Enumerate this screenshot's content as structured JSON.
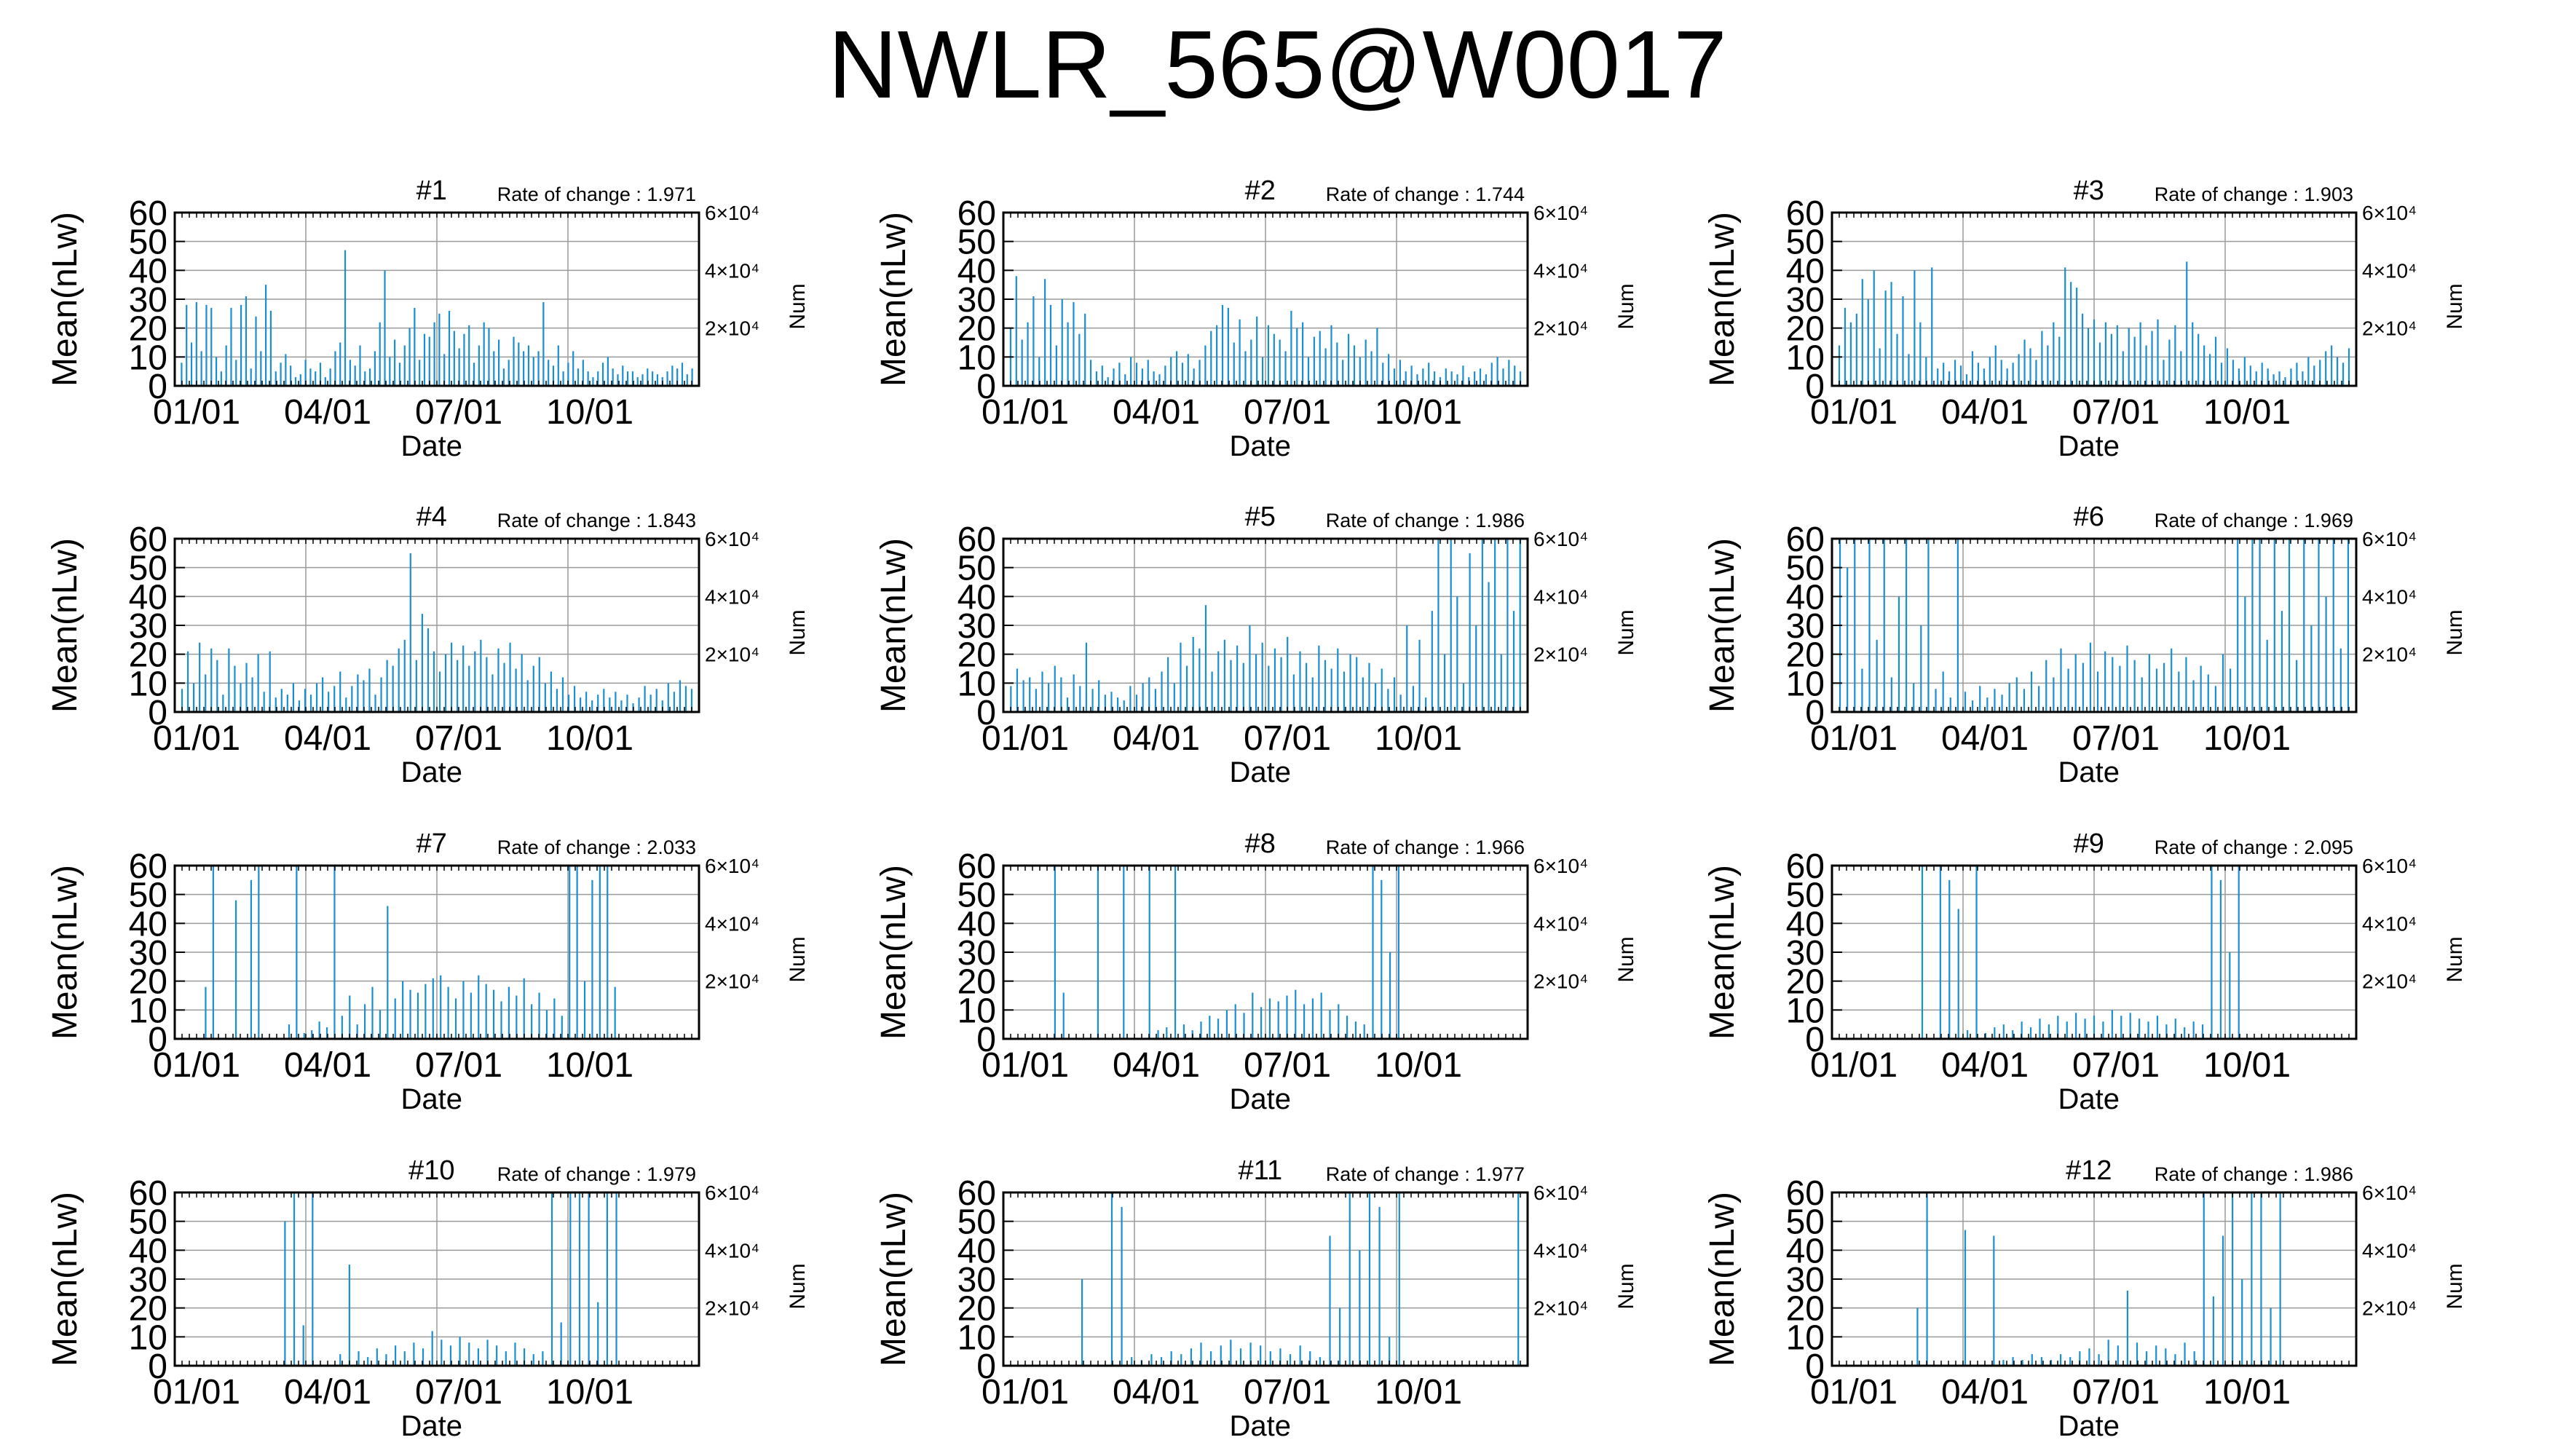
{
  "page": {
    "title": "NWLR_565@W0017"
  },
  "colors": {
    "data": "#1a8fd0",
    "grid": "#9a9a9a",
    "axis": "#000000"
  },
  "chart_data": [
    {
      "type": "bar",
      "title": "#1",
      "rate_label": "Rate of change : 1.971",
      "xlabel": "Date",
      "ylabel": "Mean(nLw)",
      "y2label": "Num",
      "ylim": [
        0,
        60
      ],
      "yticks": [
        0,
        10,
        20,
        30,
        40,
        50,
        60
      ],
      "y2ticks": [
        "2×10⁴",
        "4×10⁴",
        "6×10⁴"
      ],
      "xticks": [
        "01/01",
        "04/01",
        "07/01",
        "10/01"
      ],
      "grid": true,
      "values": [
        8,
        28,
        15,
        29,
        12,
        28,
        27,
        10,
        5,
        14,
        27,
        9,
        28,
        31,
        6,
        24,
        12,
        35,
        26,
        5,
        8,
        11,
        7,
        3,
        4,
        9,
        6,
        5,
        8,
        3,
        6,
        12,
        15,
        47,
        9,
        7,
        14,
        5,
        6,
        12,
        22,
        40,
        10,
        16,
        8,
        14,
        20,
        27,
        9,
        18,
        17,
        22,
        25,
        11,
        26,
        19,
        13,
        18,
        21,
        8,
        14,
        22,
        20,
        12,
        16,
        6,
        9,
        17,
        15,
        12,
        14,
        10,
        12,
        29,
        9,
        7,
        14,
        5,
        8,
        12,
        6,
        9,
        5,
        3,
        5,
        8,
        10,
        6,
        4,
        7,
        5,
        5,
        3,
        4,
        6,
        5,
        4,
        3,
        5,
        7,
        6,
        8,
        4,
        6
      ]
    },
    {
      "type": "bar",
      "title": "#2",
      "rate_label": "Rate of change : 1.744",
      "xlabel": "Date",
      "ylabel": "Mean(nLw)",
      "y2label": "Num",
      "ylim": [
        0,
        60
      ],
      "yticks": [
        0,
        10,
        20,
        30,
        40,
        50,
        60
      ],
      "y2ticks": [
        "2×10⁴",
        "4×10⁴",
        "6×10⁴"
      ],
      "xticks": [
        "01/01",
        "04/01",
        "07/01",
        "10/01"
      ],
      "grid": true,
      "values": [
        20,
        38,
        16,
        22,
        31,
        10,
        37,
        28,
        14,
        30,
        22,
        29,
        18,
        25,
        9,
        5,
        7,
        3,
        6,
        8,
        4,
        10,
        8,
        6,
        9,
        5,
        4,
        7,
        10,
        12,
        8,
        11,
        6,
        9,
        14,
        19,
        21,
        28,
        27,
        15,
        23,
        12,
        16,
        24,
        10,
        21,
        18,
        16,
        12,
        26,
        20,
        22,
        10,
        17,
        19,
        13,
        21,
        15,
        9,
        18,
        14,
        10,
        16,
        12,
        20,
        8,
        11,
        6,
        9,
        5,
        7,
        4,
        6,
        8,
        5,
        3,
        6,
        5,
        4,
        7,
        3,
        5,
        6,
        4,
        8,
        10,
        6,
        9,
        7,
        5
      ]
    },
    {
      "type": "bar",
      "title": "#3",
      "rate_label": "Rate of change : 1.903",
      "xlabel": "Date",
      "ylabel": "Mean(nLw)",
      "y2label": "Num",
      "ylim": [
        0,
        60
      ],
      "yticks": [
        0,
        10,
        20,
        30,
        40,
        50,
        60
      ],
      "y2ticks": [
        "2×10⁴",
        "4×10⁴",
        "6×10⁴"
      ],
      "xticks": [
        "01/01",
        "04/01",
        "07/01",
        "10/01"
      ],
      "grid": true,
      "values": [
        14,
        27,
        22,
        25,
        37,
        30,
        40,
        13,
        33,
        36,
        18,
        31,
        11,
        40,
        22,
        10,
        41,
        6,
        8,
        5,
        9,
        7,
        4,
        12,
        8,
        6,
        10,
        14,
        9,
        6,
        8,
        11,
        16,
        13,
        9,
        19,
        14,
        22,
        17,
        41,
        36,
        34,
        25,
        20,
        23,
        15,
        22,
        18,
        21,
        12,
        20,
        17,
        22,
        14,
        19,
        23,
        9,
        16,
        21,
        12,
        43,
        22,
        18,
        14,
        11,
        17,
        8,
        13,
        9,
        6,
        10,
        7,
        5,
        8,
        6,
        4,
        5,
        3,
        6,
        8,
        5,
        10,
        7,
        9,
        12,
        14,
        10,
        8,
        13
      ]
    },
    {
      "type": "bar",
      "title": "#4",
      "rate_label": "Rate of change : 1.843",
      "xlabel": "Date",
      "ylabel": "Mean(nLw)",
      "y2label": "Num",
      "ylim": [
        0,
        60
      ],
      "yticks": [
        0,
        10,
        20,
        30,
        40,
        50,
        60
      ],
      "y2ticks": [
        "2×10⁴",
        "4×10⁴",
        "6×10⁴"
      ],
      "xticks": [
        "01/01",
        "04/01",
        "07/01",
        "10/01"
      ],
      "grid": true,
      "values": [
        8,
        21,
        10,
        24,
        13,
        22,
        18,
        6,
        22,
        16,
        10,
        17,
        12,
        20,
        7,
        21,
        5,
        8,
        6,
        10,
        4,
        8,
        6,
        10,
        12,
        7,
        9,
        14,
        5,
        9,
        13,
        11,
        15,
        6,
        12,
        18,
        16,
        22,
        25,
        55,
        18,
        34,
        29,
        21,
        14,
        20,
        24,
        18,
        23,
        16,
        21,
        25,
        19,
        13,
        22,
        17,
        24,
        15,
        20,
        11,
        16,
        19,
        10,
        14,
        8,
        12,
        6,
        9,
        5,
        7,
        4,
        6,
        8,
        5,
        7,
        4,
        6,
        3,
        5,
        9,
        6,
        8,
        4,
        10,
        7,
        11,
        9,
        8
      ]
    },
    {
      "type": "bar",
      "title": "#5",
      "rate_label": "Rate of change : 1.986",
      "xlabel": "Date",
      "ylabel": "Mean(nLw)",
      "y2label": "Num",
      "ylim": [
        0,
        60
      ],
      "yticks": [
        0,
        10,
        20,
        30,
        40,
        50,
        60
      ],
      "y2ticks": [
        "2×10⁴",
        "4×10⁴",
        "6×10⁴"
      ],
      "xticks": [
        "01/01",
        "04/01",
        "07/01",
        "10/01"
      ],
      "grid": true,
      "values": [
        9,
        15,
        11,
        12,
        8,
        14,
        10,
        16,
        12,
        5,
        13,
        9,
        24,
        8,
        11,
        6,
        7,
        5,
        4,
        9,
        6,
        10,
        12,
        8,
        14,
        19,
        10,
        24,
        16,
        26,
        22,
        37,
        14,
        21,
        25,
        18,
        23,
        17,
        30,
        20,
        24,
        16,
        22,
        19,
        26,
        13,
        21,
        17,
        12,
        23,
        18,
        15,
        22,
        14,
        20,
        19,
        12,
        17,
        10,
        15,
        8,
        12,
        6,
        30,
        9,
        25,
        5,
        35,
        60,
        20,
        60,
        40,
        10,
        55,
        30,
        60,
        45,
        60,
        20,
        60,
        35,
        60
      ]
    },
    {
      "type": "bar",
      "title": "#6",
      "rate_label": "Rate of change : 1.969",
      "xlabel": "Date",
      "ylabel": "Mean(nLw)",
      "y2label": "Num",
      "ylim": [
        0,
        60
      ],
      "yticks": [
        0,
        10,
        20,
        30,
        40,
        50,
        60
      ],
      "y2ticks": [
        "2×10⁴",
        "4×10⁴",
        "6×10⁴"
      ],
      "xticks": [
        "01/01",
        "04/01",
        "07/01",
        "10/01"
      ],
      "grid": true,
      "values": [
        60,
        50,
        60,
        15,
        60,
        25,
        60,
        12,
        40,
        60,
        10,
        30,
        60,
        8,
        14,
        5,
        60,
        7,
        4,
        9,
        5,
        8,
        6,
        10,
        12,
        8,
        14,
        9,
        18,
        12,
        22,
        15,
        20,
        17,
        24,
        14,
        21,
        19,
        16,
        23,
        18,
        12,
        20,
        15,
        17,
        22,
        14,
        19,
        11,
        16,
        13,
        9,
        20,
        15,
        60,
        40,
        60,
        60,
        25,
        60,
        35,
        60,
        18,
        60,
        30,
        60,
        40,
        60,
        22,
        60
      ]
    },
    {
      "type": "bar",
      "title": "#7",
      "rate_label": "Rate of change : 2.033",
      "xlabel": "Date",
      "ylabel": "Mean(nLw)",
      "y2label": "Num",
      "ylim": [
        0,
        60
      ],
      "yticks": [
        0,
        10,
        20,
        30,
        40,
        50,
        60
      ],
      "y2ticks": [
        "2×10⁴",
        "4×10⁴",
        "6×10⁴"
      ],
      "xticks": [
        "01/01",
        "04/01",
        "07/01",
        "10/01"
      ],
      "grid": true,
      "values": [
        0,
        0,
        0,
        18,
        60,
        0,
        0,
        48,
        0,
        55,
        60,
        0,
        0,
        0,
        5,
        60,
        2,
        3,
        6,
        4,
        60,
        8,
        15,
        5,
        12,
        18,
        10,
        46,
        14,
        20,
        17,
        16,
        19,
        21,
        22,
        18,
        14,
        20,
        16,
        22,
        19,
        17,
        13,
        18,
        15,
        21,
        12,
        16,
        10,
        14,
        8,
        60,
        60,
        20,
        55,
        60,
        60,
        18,
        0,
        0,
        0,
        0,
        0,
        0,
        0,
        0,
        0,
        0
      ]
    },
    {
      "type": "bar",
      "title": "#8",
      "rate_label": "Rate of change : 1.966",
      "xlabel": "Date",
      "ylabel": "Mean(nLw)",
      "y2label": "Num",
      "ylim": [
        0,
        60
      ],
      "yticks": [
        0,
        10,
        20,
        30,
        40,
        50,
        60
      ],
      "y2ticks": [
        "2×10⁴",
        "4×10⁴",
        "6×10⁴"
      ],
      "xticks": [
        "01/01",
        "04/01",
        "07/01",
        "10/01"
      ],
      "grid": true,
      "values": [
        0,
        0,
        0,
        0,
        0,
        60,
        16,
        0,
        0,
        0,
        60,
        0,
        0,
        60,
        0,
        0,
        60,
        3,
        4,
        60,
        5,
        3,
        6,
        8,
        7,
        10,
        12,
        9,
        16,
        11,
        14,
        13,
        15,
        17,
        12,
        14,
        16,
        10,
        12,
        8,
        6,
        5,
        60,
        55,
        30,
        60,
        0,
        0,
        0,
        0,
        0,
        0,
        0,
        0,
        0,
        0,
        0,
        0,
        0,
        0
      ]
    },
    {
      "type": "bar",
      "title": "#9",
      "rate_label": "Rate of change : 2.095",
      "xlabel": "Date",
      "ylabel": "Mean(nLw)",
      "y2label": "Num",
      "ylim": [
        0,
        60
      ],
      "yticks": [
        0,
        10,
        20,
        30,
        40,
        50,
        60
      ],
      "y2ticks": [
        "2×10⁴",
        "4×10⁴",
        "6×10⁴"
      ],
      "xticks": [
        "01/01",
        "04/01",
        "07/01",
        "10/01"
      ],
      "grid": true,
      "values": [
        0,
        0,
        0,
        0,
        0,
        0,
        0,
        0,
        0,
        60,
        0,
        60,
        55,
        45,
        3,
        60,
        2,
        4,
        5,
        3,
        6,
        4,
        7,
        5,
        8,
        6,
        9,
        7,
        8,
        6,
        10,
        8,
        9,
        7,
        6,
        8,
        5,
        7,
        4,
        6,
        5,
        60,
        55,
        30,
        60,
        0,
        0,
        0,
        0,
        0,
        0,
        0,
        0,
        0,
        0,
        0,
        0
      ]
    },
    {
      "type": "bar",
      "title": "#10",
      "rate_label": "Rate of change : 1.979",
      "xlabel": "Date",
      "ylabel": "Mean(nLw)",
      "y2label": "Num",
      "ylim": [
        0,
        60
      ],
      "yticks": [
        0,
        10,
        20,
        30,
        40,
        50,
        60
      ],
      "y2ticks": [
        "2×10⁴",
        "4×10⁴",
        "6×10⁴"
      ],
      "xticks": [
        "01/01",
        "04/01",
        "07/01",
        "10/01"
      ],
      "grid": true,
      "values": [
        0,
        0,
        0,
        0,
        0,
        0,
        0,
        0,
        0,
        0,
        0,
        50,
        60,
        14,
        60,
        0,
        0,
        4,
        35,
        5,
        3,
        6,
        4,
        7,
        5,
        8,
        6,
        12,
        9,
        7,
        10,
        8,
        6,
        9,
        7,
        5,
        8,
        6,
        4,
        5,
        60,
        15,
        60,
        60,
        60,
        22,
        60,
        60,
        0,
        0,
        0,
        0,
        0,
        0,
        0,
        0
      ]
    },
    {
      "type": "bar",
      "title": "#11",
      "rate_label": "Rate of change : 1.977",
      "xlabel": "Date",
      "ylabel": "Mean(nLw)",
      "y2label": "Num",
      "ylim": [
        0,
        60
      ],
      "yticks": [
        0,
        10,
        20,
        30,
        40,
        50,
        60
      ],
      "y2ticks": [
        "2×10⁴",
        "4×10⁴",
        "6×10⁴"
      ],
      "xticks": [
        "01/01",
        "04/01",
        "07/01",
        "10/01"
      ],
      "grid": true,
      "values": [
        0,
        0,
        0,
        0,
        0,
        0,
        0,
        30,
        0,
        0,
        60,
        55,
        3,
        2,
        4,
        3,
        5,
        4,
        6,
        8,
        5,
        7,
        9,
        6,
        8,
        7,
        5,
        6,
        4,
        7,
        5,
        3,
        45,
        20,
        60,
        40,
        60,
        55,
        10,
        60,
        0,
        0,
        0,
        0,
        0,
        0,
        0,
        0,
        0,
        0,
        0,
        60
      ]
    },
    {
      "type": "bar",
      "title": "#12",
      "rate_label": "Rate of change : 1.986",
      "xlabel": "Date",
      "ylabel": "Mean(nLw)",
      "y2label": "Num",
      "ylim": [
        0,
        60
      ],
      "yticks": [
        0,
        10,
        20,
        30,
        40,
        50,
        60
      ],
      "y2ticks": [
        "2×10⁴",
        "4×10⁴",
        "6×10⁴"
      ],
      "xticks": [
        "01/01",
        "04/01",
        "07/01",
        "10/01"
      ],
      "grid": true,
      "values": [
        0,
        0,
        0,
        0,
        0,
        0,
        0,
        0,
        20,
        60,
        0,
        0,
        0,
        47,
        0,
        0,
        45,
        2,
        3,
        2,
        4,
        3,
        2,
        4,
        3,
        5,
        6,
        4,
        9,
        7,
        26,
        8,
        5,
        7,
        6,
        4,
        8,
        5,
        60,
        24,
        45,
        60,
        30,
        60,
        60,
        20,
        60,
        0,
        0,
        0,
        0,
        0,
        0,
        0
      ]
    }
  ]
}
